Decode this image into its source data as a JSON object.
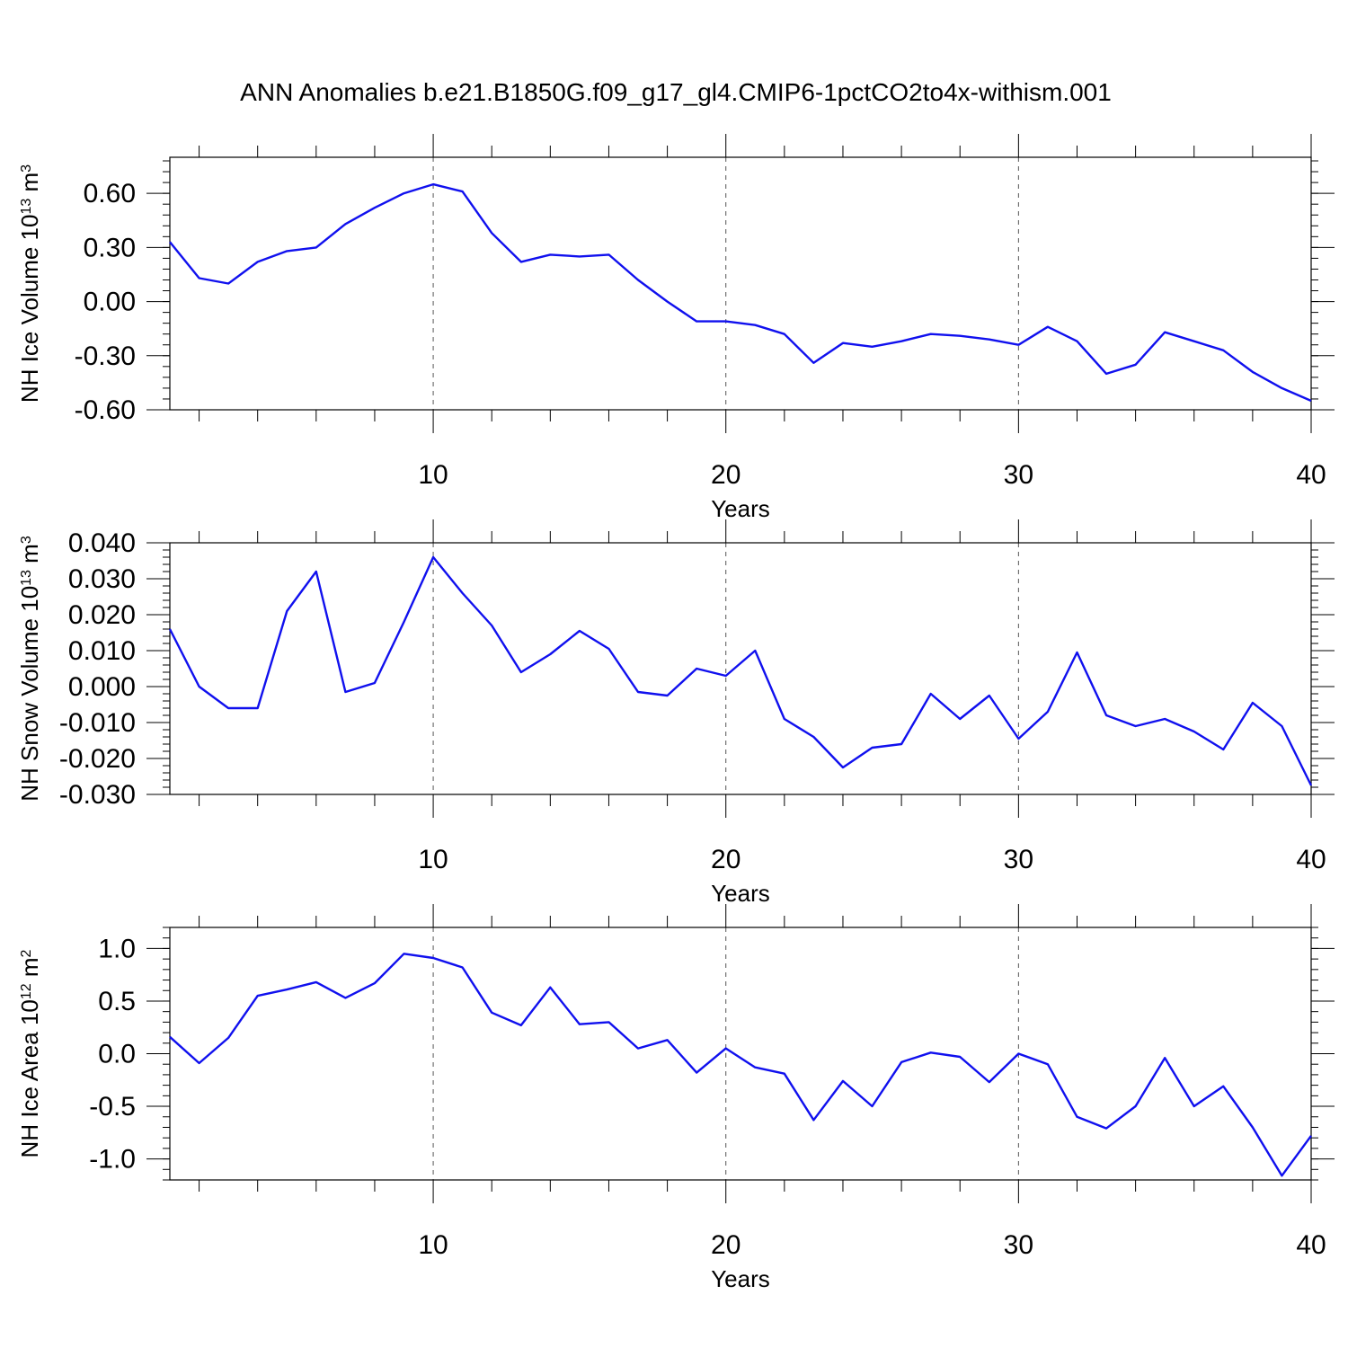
{
  "title": "ANN Anomalies b.e21.B1850G.f09_g17_gl4.CMIP6-1pctCO2to4x-withism.001",
  "line_color": "#1010ee",
  "chart_data": [
    {
      "type": "line",
      "title": "",
      "xlabel": "Years",
      "ylabel_main": "NH Ice Volume 10",
      "ylabel_exp": "13",
      "ylabel_unit": " m",
      "ylabel_unit_exp": "3",
      "xlim": [
        1,
        40
      ],
      "ylim": [
        -0.6,
        0.8
      ],
      "xticks": [
        10,
        20,
        30,
        40
      ],
      "yticks": [
        -0.6,
        -0.3,
        0.0,
        0.3,
        0.6
      ],
      "ytick_labels": [
        "-0.60",
        "-0.30",
        "0.00",
        "0.30",
        "0.60"
      ],
      "grid_x": [
        10,
        20,
        30
      ],
      "x": [
        1,
        2,
        3,
        4,
        5,
        6,
        7,
        8,
        9,
        10,
        11,
        12,
        13,
        14,
        15,
        16,
        17,
        18,
        19,
        20,
        21,
        22,
        23,
        24,
        25,
        26,
        27,
        28,
        29,
        30,
        31,
        32,
        33,
        34,
        35,
        36,
        37,
        38,
        39,
        40
      ],
      "y": [
        0.33,
        0.13,
        0.1,
        0.22,
        0.28,
        0.3,
        0.43,
        0.52,
        0.6,
        0.65,
        0.61,
        0.38,
        0.22,
        0.26,
        0.25,
        0.26,
        0.12,
        0.0,
        -0.11,
        -0.11,
        -0.13,
        -0.18,
        -0.34,
        -0.23,
        -0.25,
        -0.22,
        -0.18,
        -0.19,
        -0.21,
        -0.24,
        -0.14,
        -0.22,
        -0.4,
        -0.35,
        -0.17,
        -0.22,
        -0.27,
        -0.39,
        -0.48,
        -0.55
      ]
    },
    {
      "type": "line",
      "title": "",
      "xlabel": "Years",
      "ylabel_main": "NH Snow Volume 10",
      "ylabel_exp": "13",
      "ylabel_unit": " m",
      "ylabel_unit_exp": "3",
      "xlim": [
        1,
        40
      ],
      "ylim": [
        -0.03,
        0.04
      ],
      "xticks": [
        10,
        20,
        30,
        40
      ],
      "yticks": [
        -0.03,
        -0.02,
        -0.01,
        0.0,
        0.01,
        0.02,
        0.03,
        0.04
      ],
      "ytick_labels": [
        "-0.030",
        "-0.020",
        "-0.010",
        "0.000",
        "0.010",
        "0.020",
        "0.030",
        "0.040"
      ],
      "grid_x": [
        10,
        20,
        30
      ],
      "x": [
        1,
        2,
        3,
        4,
        5,
        6,
        7,
        8,
        9,
        10,
        11,
        12,
        13,
        14,
        15,
        16,
        17,
        18,
        19,
        20,
        21,
        22,
        23,
        24,
        25,
        26,
        27,
        28,
        29,
        30,
        31,
        32,
        33,
        34,
        35,
        36,
        37,
        38,
        39,
        40
      ],
      "y": [
        0.016,
        0.0,
        -0.006,
        -0.006,
        0.021,
        0.032,
        -0.0015,
        0.001,
        0.018,
        0.036,
        0.026,
        0.017,
        0.004,
        0.009,
        0.0155,
        0.0105,
        -0.0015,
        -0.0025,
        0.005,
        0.003,
        0.01,
        -0.009,
        -0.014,
        -0.0225,
        -0.017,
        -0.016,
        -0.002,
        -0.009,
        -0.0025,
        -0.0145,
        -0.007,
        0.0095,
        -0.008,
        -0.011,
        -0.009,
        -0.0125,
        -0.0175,
        -0.0045,
        -0.011,
        -0.0275
      ]
    },
    {
      "type": "line",
      "title": "",
      "xlabel": "Years",
      "ylabel_main": "NH Ice Area 10",
      "ylabel_exp": "12",
      "ylabel_unit": " m",
      "ylabel_unit_exp": "2",
      "xlim": [
        1,
        40
      ],
      "ylim": [
        -1.2,
        1.2
      ],
      "xticks": [
        10,
        20,
        30,
        40
      ],
      "yticks": [
        -1.0,
        -0.5,
        0.0,
        0.5,
        1.0
      ],
      "ytick_labels": [
        "-1.0",
        "-0.5",
        "0.0",
        "0.5",
        "1.0"
      ],
      "grid_x": [
        10,
        20,
        30
      ],
      "x": [
        1,
        2,
        3,
        4,
        5,
        6,
        7,
        8,
        9,
        10,
        11,
        12,
        13,
        14,
        15,
        16,
        17,
        18,
        19,
        20,
        21,
        22,
        23,
        24,
        25,
        26,
        27,
        28,
        29,
        30,
        31,
        32,
        33,
        34,
        35,
        36,
        37,
        38,
        39,
        40
      ],
      "y": [
        0.16,
        -0.09,
        0.15,
        0.55,
        0.61,
        0.68,
        0.53,
        0.67,
        0.95,
        0.91,
        0.82,
        0.39,
        0.27,
        0.63,
        0.28,
        0.3,
        0.05,
        0.13,
        -0.18,
        0.05,
        -0.13,
        -0.19,
        -0.63,
        -0.26,
        -0.5,
        -0.08,
        0.01,
        -0.03,
        -0.27,
        0.0,
        -0.1,
        -0.6,
        -0.71,
        -0.5,
        -0.04,
        -0.5,
        -0.31,
        -0.7,
        -1.16,
        -0.78
      ]
    }
  ]
}
